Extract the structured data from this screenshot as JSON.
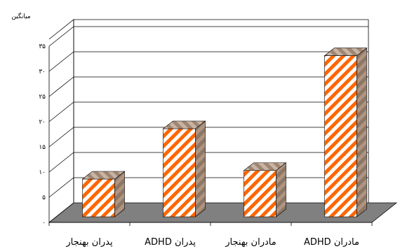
{
  "chart_data": {
    "type": "bar",
    "title": "",
    "xlabel": "",
    "ylabel": "میانگین",
    "ylim": [
      0,
      35
    ],
    "yticks": [
      0,
      5,
      10,
      15,
      20,
      25,
      30,
      35
    ],
    "ytick_labels": [
      "۰",
      "۵",
      "۱۰",
      "۱۵",
      "۲۰",
      "۲۵",
      "۳۰",
      "۳۵"
    ],
    "categories": [
      "پدران بهنجار",
      "پدران ADHD",
      "مادران بهنجار",
      "مادران ADHD"
    ],
    "values": [
      7.5,
      17.5,
      9.2,
      32
    ],
    "grid": true,
    "style": "3d",
    "colors": {
      "bar_stripe_primary": "#ff6600",
      "bar_stripe_secondary": "#ffffff",
      "bar_side": "#9a7e6a",
      "bar_top": "#b89c88",
      "floor": "#808080",
      "grid": "#000000"
    }
  }
}
